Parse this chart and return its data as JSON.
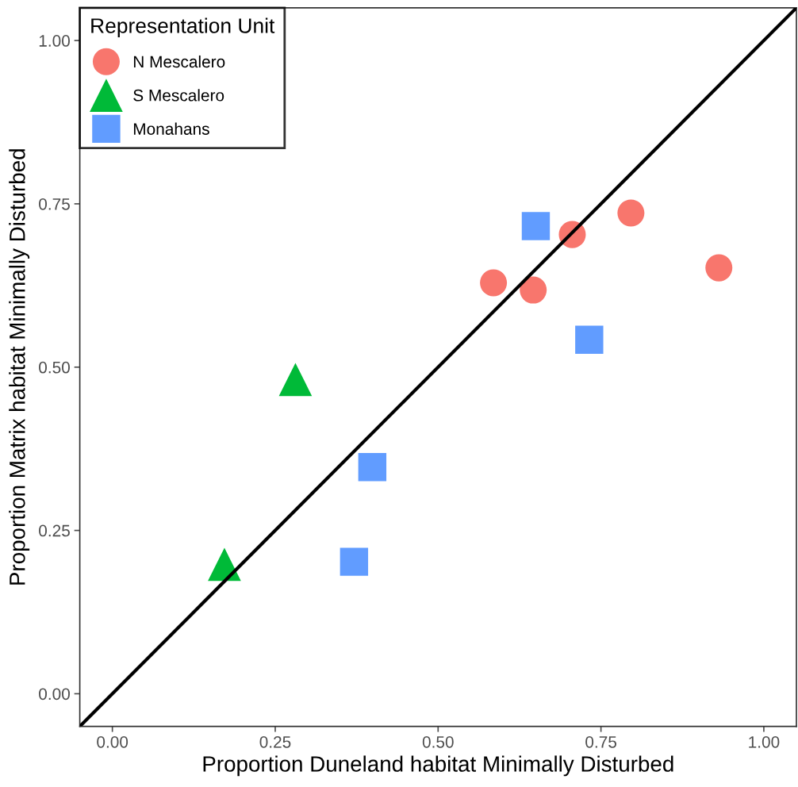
{
  "chart_data": {
    "type": "scatter",
    "xlabel": "Proportion Duneland habitat Minimally Disturbed",
    "ylabel": "Proportion Matrix habitat Minimally Disturbed",
    "legend_title": "Representation Unit",
    "legend": "top left",
    "grid": false,
    "xlim": [
      -0.05,
      1.05
    ],
    "ylim": [
      -0.05,
      1.05
    ],
    "xticks": [
      {
        "value": 0,
        "label": "0.00"
      },
      {
        "value": 0.25,
        "label": "0.25"
      },
      {
        "value": 0.5,
        "label": "0.50"
      },
      {
        "value": 0.75,
        "label": "0.75"
      },
      {
        "value": 1,
        "label": "1.00"
      }
    ],
    "yticks": [
      {
        "value": 0,
        "label": "0.00"
      },
      {
        "value": 0.25,
        "label": "0.25"
      },
      {
        "value": 0.5,
        "label": "0.50"
      },
      {
        "value": 0.75,
        "label": "0.75"
      },
      {
        "value": 1,
        "label": "1.00"
      }
    ],
    "series": [
      {
        "name": "N Mescalero",
        "color": "#f8766d",
        "marker": "circle",
        "x": [
          0.585,
          0.646,
          0.706,
          0.796,
          0.931
        ],
        "values": [
          0.629,
          0.618,
          0.703,
          0.736,
          0.652
        ]
      },
      {
        "name": "S Mescalero",
        "color": "#00ba38",
        "marker": "triangle",
        "x": [
          0.281,
          0.172
        ],
        "values": [
          0.481,
          0.198
        ]
      },
      {
        "name": "Monahans",
        "color": "#619cff",
        "marker": "square",
        "x": [
          0.65,
          0.732,
          0.399,
          0.371
        ],
        "values": [
          0.716,
          0.542,
          0.347,
          0.202
        ]
      },
      {
        "type": "line",
        "color": "#000000",
        "line_style": "solid",
        "marker": "none",
        "x": [
          -0.05,
          1.05
        ],
        "values": [
          -0.05,
          1.05
        ]
      }
    ]
  }
}
